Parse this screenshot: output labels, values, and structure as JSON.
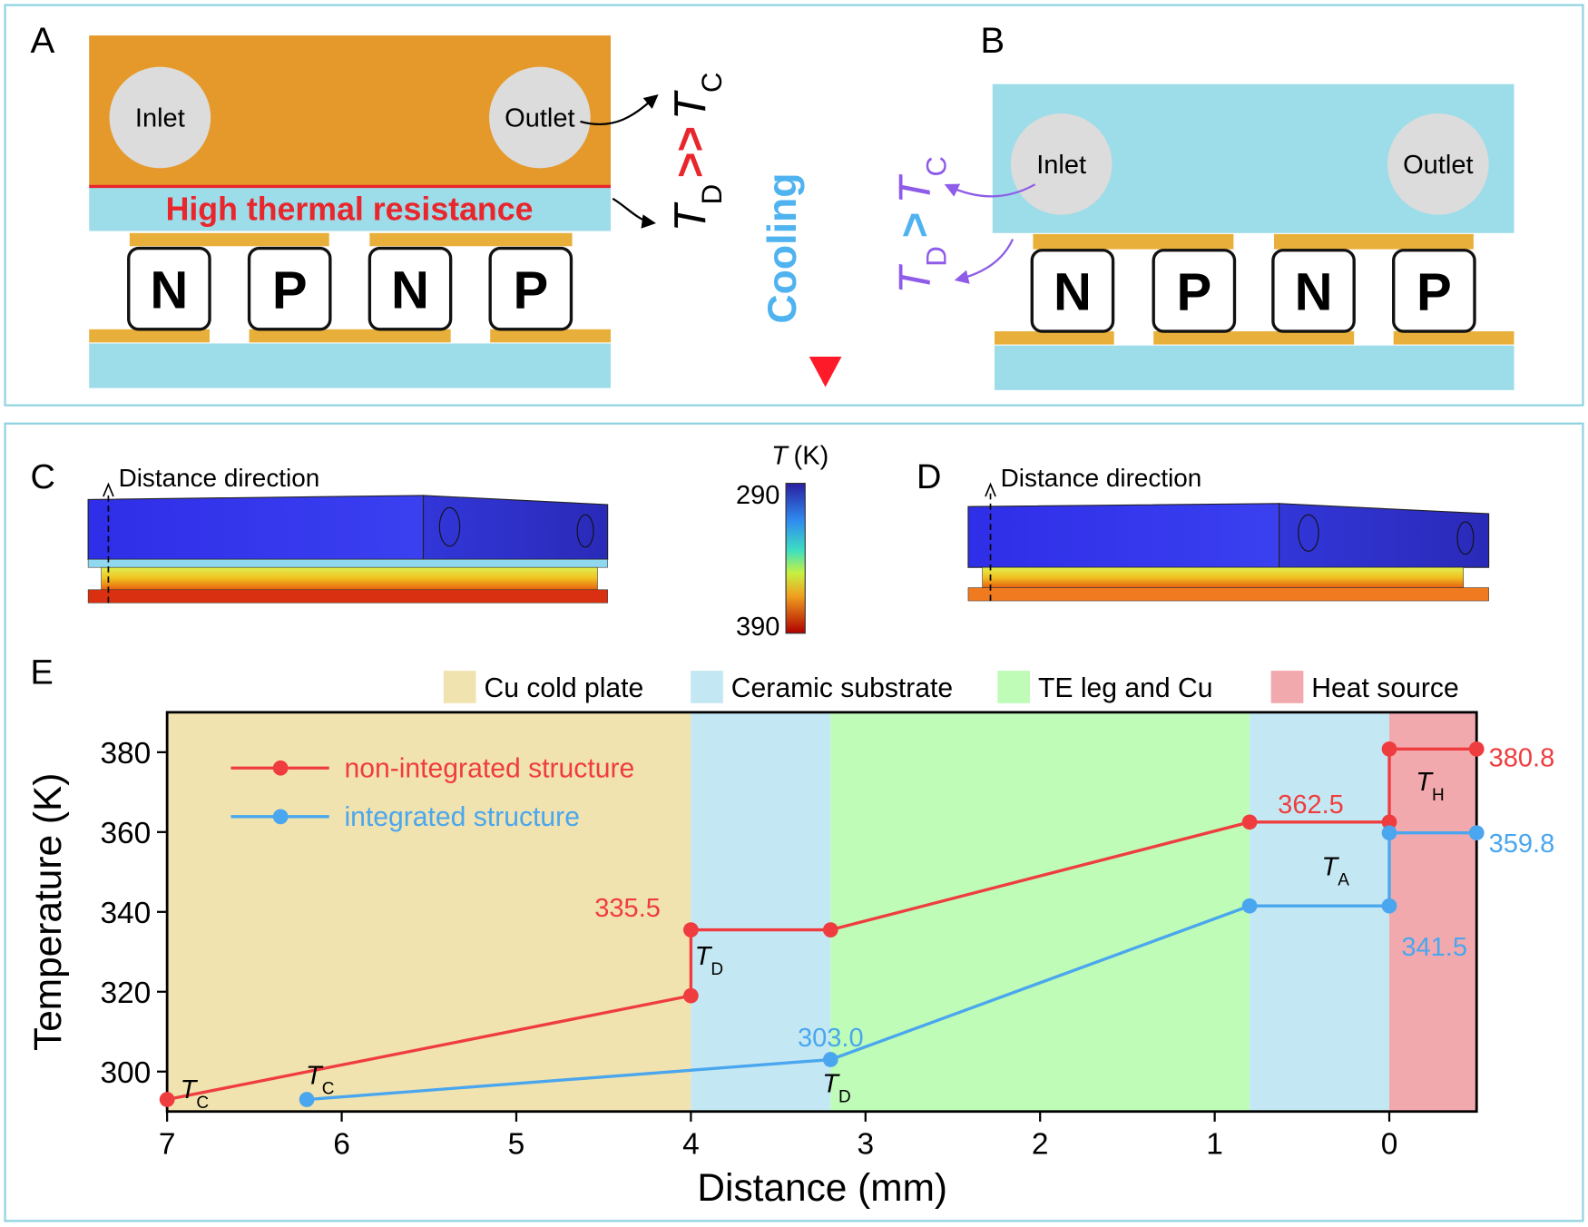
{
  "panel_a": {
    "label": "A",
    "inlet": "Inlet",
    "outlet": "Outlet",
    "resistance": "High thermal resistance",
    "legs": [
      "N",
      "P",
      "N",
      "P"
    ],
    "relation": {
      "left": "T",
      "left_sub": "D",
      "op": ">>",
      "right": "T",
      "right_sub": "C"
    }
  },
  "cooling": "Cooling",
  "panel_b": {
    "label": "B",
    "inlet": "Inlet",
    "outlet": "Outlet",
    "legs": [
      "N",
      "P",
      "N",
      "P"
    ],
    "relation": {
      "left": "T",
      "left_sub": "D",
      "op": ">",
      "right": "T",
      "right_sub": "C"
    }
  },
  "panel_c": {
    "label": "C",
    "direction": "Distance direction"
  },
  "panel_d": {
    "label": "D",
    "direction": "Distance direction"
  },
  "colorbar": {
    "var": "T",
    "unit": "(K)",
    "top": 290,
    "bottom": 390
  },
  "chart_data": {
    "type": "line",
    "label": "E",
    "xlabel": "Distance (mm)",
    "ylabel": "Temperature (K)",
    "xlim": [
      7,
      -0.5
    ],
    "ylim": [
      290,
      390
    ],
    "xticks": [
      7,
      6,
      5,
      4,
      3,
      2,
      1,
      0
    ],
    "yticks": [
      300,
      320,
      340,
      360,
      380
    ],
    "regions": [
      {
        "name": "Cu cold plate",
        "color": "#f1e3af",
        "range": [
          7,
          4
        ]
      },
      {
        "name": "Ceramic substrate",
        "color": "#c4e8f3",
        "range": [
          4,
          3.2
        ]
      },
      {
        "name": "TE leg and Cu",
        "color": "#befcb8",
        "range": [
          3.2,
          0.8
        ]
      },
      {
        "name": "Ceramic substrate",
        "color": "#c4e8f3",
        "range": [
          0.8,
          0
        ]
      },
      {
        "name": "Heat source",
        "color": "#f2a9ae",
        "range": [
          0,
          -0.5
        ]
      }
    ],
    "series": [
      {
        "name": "non-integrated structure",
        "color": "#ef3d3f",
        "x": [
          7,
          4,
          4,
          3.2,
          0.8,
          0,
          0,
          -0.5
        ],
        "values": [
          293,
          319,
          335.5,
          335.5,
          362.5,
          362.5,
          380.8,
          380.8
        ],
        "value_labels": [
          null,
          null,
          "335.5",
          null,
          null,
          "362.5",
          null,
          "380.8"
        ]
      },
      {
        "name": "integrated structure",
        "color": "#4aa6ee",
        "x": [
          6.2,
          3.2,
          0.8,
          0,
          0,
          -0.5
        ],
        "values": [
          293,
          303,
          341.5,
          341.5,
          359.8,
          359.8
        ],
        "value_labels": [
          null,
          "303.0",
          null,
          "341.5",
          null,
          "359.8"
        ]
      }
    ],
    "annotations": [
      {
        "text": "T",
        "sub": "C"
      },
      {
        "text": "T",
        "sub": "C"
      },
      {
        "text": "T",
        "sub": "D"
      },
      {
        "text": "T",
        "sub": "D"
      },
      {
        "text": "T",
        "sub": "A"
      },
      {
        "text": "T",
        "sub": "H"
      }
    ]
  }
}
